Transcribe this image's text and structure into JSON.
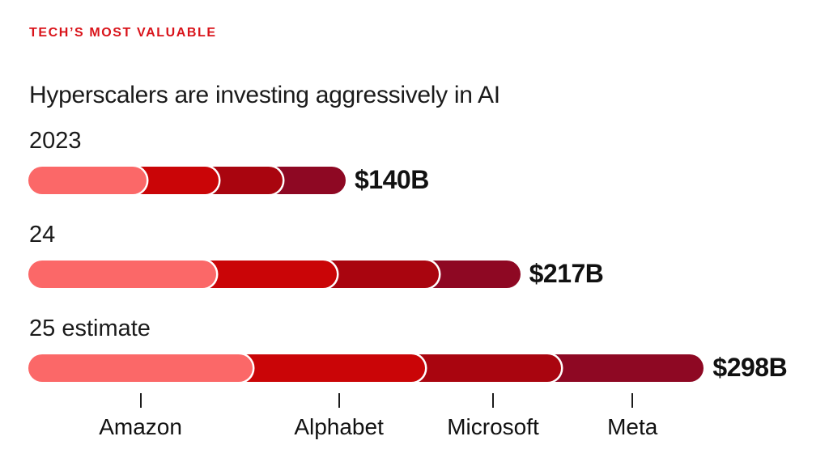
{
  "header": {
    "kicker": "TECH’S MOST VALUABLE",
    "title": "Hyperscalers are investing aggressively in AI"
  },
  "chart_data": {
    "type": "bar",
    "stacked": true,
    "orientation": "horizontal",
    "kicker": "TECH’S MOST VALUABLE",
    "title": "Hyperscalers are investing aggressively in AI",
    "categories": [
      "2023",
      "24",
      "25 estimate"
    ],
    "companies": [
      "Amazon",
      "Alphabet",
      "Microsoft",
      "Meta"
    ],
    "segment_colors": [
      "#FB6868",
      "#CA0507",
      "#A9050F",
      "#8E0823"
    ],
    "series": [
      {
        "name": "Amazon",
        "values": [
          52,
          83,
          99
        ]
      },
      {
        "name": "Alphabet",
        "values": [
          32,
          53,
          76
        ]
      },
      {
        "name": "Microsoft",
        "values": [
          28,
          45,
          60
        ]
      },
      {
        "name": "Meta",
        "values": [
          28,
          36,
          63
        ]
      }
    ],
    "totals_labels": [
      "$140B",
      "$217B",
      "$298B"
    ],
    "totals_numeric": [
      140,
      217,
      298
    ],
    "unit": "billions of US dollars",
    "xlabel": "",
    "ylabel": "",
    "legend_position": "bottom-axis-ticks",
    "grid": false,
    "axis_text_color": "#111111",
    "kicker_color": "#D9131A"
  }
}
